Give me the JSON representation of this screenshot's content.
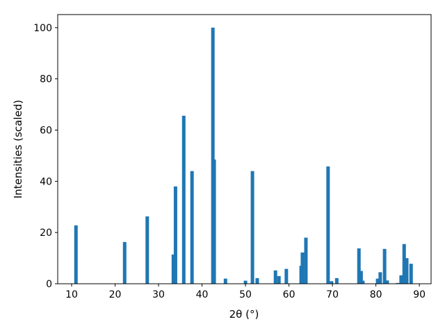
{
  "chart_data": {
    "type": "bar",
    "x": [
      11.0,
      22.2,
      27.4,
      33.4,
      33.9,
      35.8,
      37.7,
      42.5,
      42.8,
      45.4,
      50.0,
      51.6,
      52.7,
      56.9,
      57.7,
      59.4,
      62.8,
      63.1,
      63.9,
      69.0,
      69.8,
      71.0,
      76.1,
      76.6,
      77.0,
      80.4,
      81.0,
      82.0,
      82.6,
      85.0,
      85.8,
      86.5,
      87.1,
      88.1
    ],
    "values": [
      22.8,
      16.3,
      26.3,
      11.4,
      38.0,
      65.6,
      44.0,
      100.0,
      48.5,
      2.0,
      1.2,
      44.0,
      2.2,
      5.2,
      3.0,
      5.8,
      7.0,
      12.2,
      18.0,
      45.8,
      1.0,
      2.2,
      13.8,
      5.0,
      1.2,
      2.0,
      4.5,
      13.6,
      1.3,
      0.3,
      3.3,
      15.5,
      10.0,
      7.8
    ],
    "color": "#1f77b4",
    "xlabel": "2θ (°)",
    "ylabel": "Intensities (scaled)",
    "xlim": [
      6.8,
      92.7
    ],
    "ylim": [
      0,
      105.1
    ],
    "xticks": [
      10,
      20,
      30,
      40,
      50,
      60,
      70,
      80,
      90
    ],
    "yticks": [
      0,
      20,
      40,
      60,
      80,
      100
    ]
  }
}
